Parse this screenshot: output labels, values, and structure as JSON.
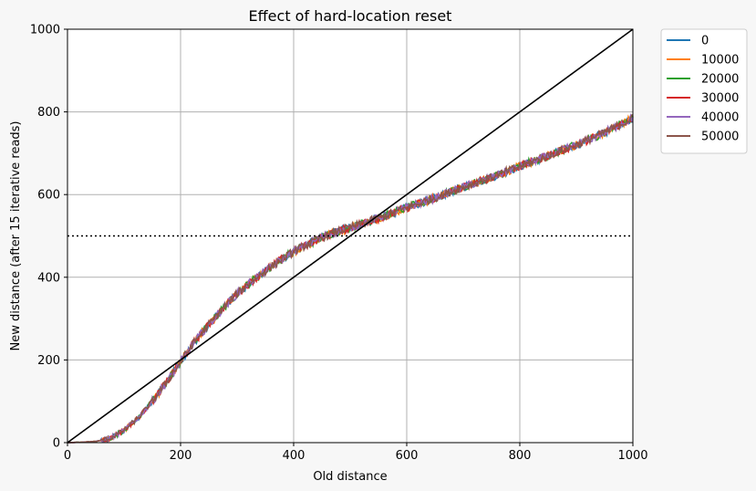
{
  "chart_data": {
    "type": "line",
    "title": "Effect of hard-location reset",
    "xlabel": "Old distance",
    "ylabel": "New distance (after 15 iterative reads)",
    "xlim": [
      0,
      1000
    ],
    "ylim": [
      0,
      1000
    ],
    "xticks": [
      0,
      200,
      400,
      600,
      800,
      1000
    ],
    "yticks": [
      0,
      200,
      400,
      600,
      800,
      1000
    ],
    "grid": true,
    "legend_position": "outside-top-right",
    "x": [
      0,
      25,
      50,
      75,
      100,
      125,
      150,
      175,
      200,
      225,
      250,
      275,
      300,
      325,
      350,
      375,
      400,
      425,
      450,
      475,
      500,
      525,
      550,
      575,
      600,
      625,
      650,
      675,
      700,
      725,
      750,
      775,
      800,
      825,
      850,
      875,
      900,
      925,
      950,
      975,
      1000
    ],
    "series": [
      {
        "name": "0",
        "color": "#1f77b4",
        "values": [
          0,
          1,
          3,
          10,
          30,
          60,
          100,
          145,
          195,
          245,
          285,
          325,
          360,
          390,
          415,
          440,
          462,
          480,
          496,
          510,
          520,
          532,
          543,
          555,
          568,
          580,
          592,
          605,
          618,
          630,
          642,
          655,
          668,
          681,
          694,
          707,
          720,
          735,
          750,
          768,
          785
        ]
      },
      {
        "name": "10000",
        "color": "#ff7f0e",
        "values": [
          0,
          1,
          3,
          10,
          30,
          60,
          100,
          145,
          195,
          245,
          285,
          325,
          360,
          390,
          415,
          440,
          462,
          480,
          496,
          510,
          520,
          532,
          543,
          555,
          568,
          580,
          592,
          605,
          618,
          630,
          642,
          655,
          668,
          681,
          694,
          707,
          720,
          735,
          750,
          768,
          785
        ]
      },
      {
        "name": "20000",
        "color": "#2ca02c",
        "values": [
          0,
          1,
          3,
          10,
          30,
          60,
          100,
          145,
          195,
          245,
          285,
          325,
          360,
          390,
          415,
          440,
          462,
          480,
          496,
          510,
          520,
          532,
          543,
          555,
          568,
          580,
          592,
          605,
          618,
          630,
          642,
          655,
          668,
          681,
          694,
          707,
          720,
          735,
          750,
          768,
          785
        ]
      },
      {
        "name": "30000",
        "color": "#d62728",
        "values": [
          0,
          1,
          3,
          10,
          30,
          60,
          100,
          145,
          195,
          245,
          285,
          325,
          360,
          390,
          415,
          440,
          462,
          480,
          496,
          510,
          520,
          532,
          543,
          555,
          568,
          580,
          592,
          605,
          618,
          630,
          642,
          655,
          668,
          681,
          694,
          707,
          720,
          735,
          750,
          768,
          785
        ]
      },
      {
        "name": "40000",
        "color": "#9467bd",
        "values": [
          0,
          1,
          3,
          10,
          30,
          60,
          100,
          145,
          195,
          245,
          285,
          325,
          360,
          390,
          415,
          440,
          462,
          480,
          496,
          510,
          520,
          532,
          543,
          555,
          568,
          580,
          592,
          605,
          618,
          630,
          642,
          655,
          668,
          681,
          694,
          707,
          720,
          735,
          750,
          768,
          785
        ]
      },
      {
        "name": "50000",
        "color": "#8c564b",
        "values": [
          0,
          1,
          3,
          10,
          30,
          60,
          100,
          145,
          195,
          245,
          285,
          325,
          360,
          390,
          415,
          440,
          462,
          480,
          496,
          510,
          520,
          532,
          543,
          555,
          568,
          580,
          592,
          605,
          618,
          630,
          642,
          655,
          668,
          681,
          694,
          707,
          720,
          735,
          750,
          768,
          785
        ]
      }
    ],
    "reference_lines": [
      {
        "type": "diagonal",
        "from": [
          0,
          0
        ],
        "to": [
          1000,
          1000
        ],
        "color": "#000000",
        "style": "solid"
      },
      {
        "type": "horizontal",
        "y": 500,
        "color": "#000000",
        "style": "dotted"
      }
    ]
  }
}
